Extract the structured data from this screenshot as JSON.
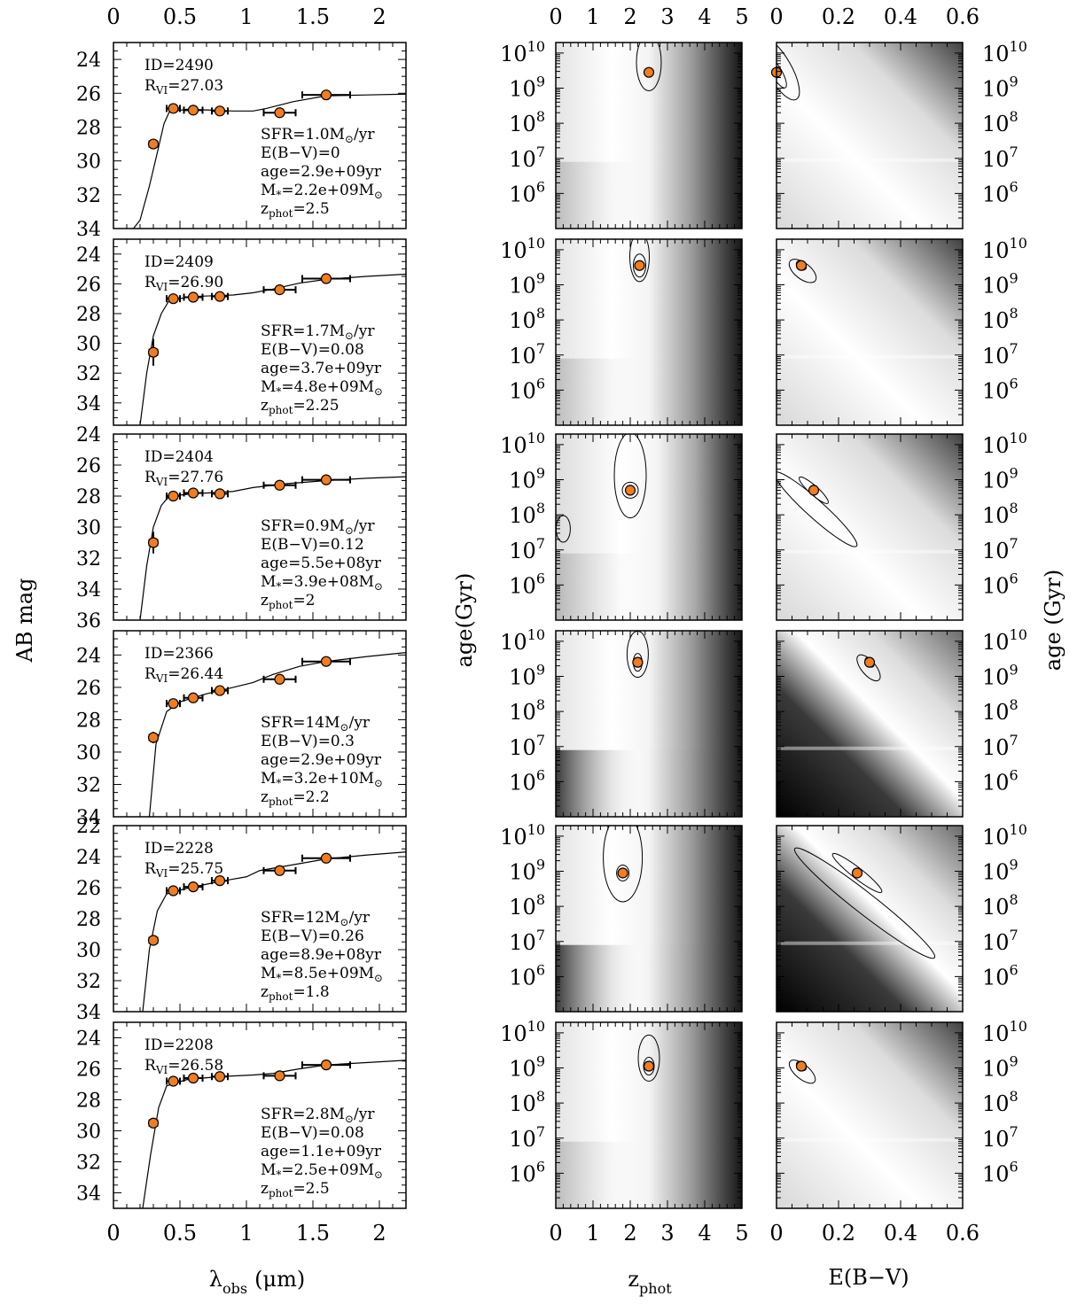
{
  "figure": {
    "sed_ylabel": "AB mag",
    "sed_xlabel": "λ",
    "sed_xlabel_sub": "obs",
    "sed_xlabel_unit": "(μm)",
    "age_ylabel_left": "age(Gyr)",
    "age_ylabel_right": "age (Gyr)",
    "z_xlabel": "z",
    "z_xlabel_sub": "phot",
    "ebv_xlabel": "E(B−V)",
    "colors": {
      "point_fill": "#ef7d22",
      "point_edge": "#000000",
      "curve": "#000000"
    }
  },
  "chart_data": [
    {
      "type": "scatter",
      "panel": "sed",
      "xlim": [
        0,
        2.2
      ],
      "xticks": [
        0,
        0.5,
        1,
        1.5,
        2
      ],
      "xticklabels": [
        "0",
        "0.5",
        "1",
        "1.5",
        "2"
      ],
      "rows": [
        {
          "ylim": [
            34,
            23
          ],
          "yticks": [
            24,
            26,
            28,
            30,
            32,
            34
          ],
          "ID": "2490",
          "RVI": "27.03",
          "SFR": "1.0",
          "EBV": "0",
          "age": "2.9e+09",
          "mass": "2.2e+09",
          "zphot": "2.5",
          "points": [
            [
              0.3,
              29.0
            ],
            [
              0.45,
              26.9
            ],
            [
              0.6,
              27.0
            ],
            [
              0.8,
              27.05
            ],
            [
              1.25,
              27.15
            ],
            [
              1.6,
              26.1
            ]
          ],
          "xerr": [
            0.03,
            0.05,
            0.07,
            0.06,
            0.12,
            0.18
          ],
          "yerr": [
            0.25,
            0.1,
            0.1,
            0.1,
            0.2,
            0.1
          ],
          "curve": [
            [
              0.1,
              34.5
            ],
            [
              0.2,
              33.5
            ],
            [
              0.27,
              31.5
            ],
            [
              0.33,
              29.5
            ],
            [
              0.38,
              27.8
            ],
            [
              0.42,
              27.1
            ],
            [
              0.55,
              26.95
            ],
            [
              0.75,
              27.0
            ],
            [
              0.9,
              27.05
            ],
            [
              1.05,
              27.05
            ],
            [
              1.15,
              26.9
            ],
            [
              1.35,
              26.5
            ],
            [
              1.6,
              26.15
            ],
            [
              1.9,
              26.1
            ],
            [
              2.2,
              26.05
            ]
          ]
        },
        {
          "ylim": [
            35.5,
            23
          ],
          "yticks": [
            24,
            26,
            28,
            30,
            32,
            34
          ],
          "ID": "2409",
          "RVI": "26.90",
          "SFR": "1.7",
          "EBV": "0.08",
          "age": "3.7e+09",
          "mass": "4.8e+09",
          "zphot": "2.25",
          "points": [
            [
              0.3,
              30.6
            ],
            [
              0.45,
              27.0
            ],
            [
              0.6,
              26.9
            ],
            [
              0.8,
              26.85
            ],
            [
              1.25,
              26.4
            ],
            [
              1.6,
              25.65
            ]
          ],
          "xerr": [
            0.03,
            0.05,
            0.07,
            0.06,
            0.12,
            0.18
          ],
          "yerr": [
            0.9,
            0.1,
            0.1,
            0.1,
            0.2,
            0.1
          ],
          "curve": [
            [
              0.2,
              35.5
            ],
            [
              0.25,
              32.0
            ],
            [
              0.3,
              29.5
            ],
            [
              0.36,
              28.0
            ],
            [
              0.42,
              27.1
            ],
            [
              0.6,
              26.85
            ],
            [
              0.9,
              26.75
            ],
            [
              1.05,
              26.6
            ],
            [
              1.2,
              26.35
            ],
            [
              1.4,
              25.95
            ],
            [
              1.6,
              25.7
            ],
            [
              1.9,
              25.5
            ],
            [
              2.2,
              25.35
            ]
          ]
        },
        {
          "ylim": [
            36,
            24
          ],
          "yticks": [
            24,
            26,
            28,
            30,
            32,
            34,
            36
          ],
          "ID": "2404",
          "RVI": "27.76",
          "SFR": "0.9",
          "EBV": "0.12",
          "age": "5.5e+08",
          "mass": "3.9e+08",
          "zphot": "2",
          "points": [
            [
              0.3,
              31.0
            ],
            [
              0.45,
              28.0
            ],
            [
              0.6,
              27.8
            ],
            [
              0.8,
              27.85
            ],
            [
              1.25,
              27.3
            ],
            [
              1.6,
              26.95
            ]
          ],
          "xerr": [
            0.03,
            0.05,
            0.07,
            0.06,
            0.12,
            0.18
          ],
          "yerr": [
            0.7,
            0.1,
            0.1,
            0.1,
            0.2,
            0.1
          ],
          "curve": [
            [
              0.2,
              36.0
            ],
            [
              0.25,
              32.5
            ],
            [
              0.3,
              30.0
            ],
            [
              0.36,
              28.6
            ],
            [
              0.42,
              28.0
            ],
            [
              0.6,
              27.85
            ],
            [
              0.9,
              27.7
            ],
            [
              1.05,
              27.45
            ],
            [
              1.3,
              27.2
            ],
            [
              1.6,
              27.0
            ],
            [
              1.9,
              26.85
            ],
            [
              2.2,
              26.75
            ]
          ]
        },
        {
          "ylim": [
            34,
            22.5
          ],
          "yticks": [
            24,
            26,
            28,
            30,
            32,
            34
          ],
          "ID": "2366",
          "RVI": "26.44",
          "SFR": "14",
          "EBV": "0.3",
          "age": "2.9e+09",
          "mass": "3.2e+10",
          "zphot": "2.2",
          "points": [
            [
              0.3,
              29.1
            ],
            [
              0.45,
              27.0
            ],
            [
              0.6,
              26.65
            ],
            [
              0.8,
              26.2
            ],
            [
              1.25,
              25.5
            ],
            [
              1.6,
              24.4
            ]
          ],
          "xerr": [
            0.03,
            0.05,
            0.07,
            0.06,
            0.12,
            0.18
          ],
          "yerr": [
            0.35,
            0.1,
            0.1,
            0.1,
            0.2,
            0.1
          ],
          "curve": [
            [
              0.27,
              34.0
            ],
            [
              0.32,
              29.5
            ],
            [
              0.4,
              27.5
            ],
            [
              0.5,
              26.9
            ],
            [
              0.7,
              26.4
            ],
            [
              0.9,
              26.0
            ],
            [
              1.05,
              25.7
            ],
            [
              1.2,
              25.2
            ],
            [
              1.4,
              24.7
            ],
            [
              1.6,
              24.4
            ],
            [
              1.9,
              24.1
            ],
            [
              2.2,
              23.85
            ]
          ]
        },
        {
          "ylim": [
            34,
            22
          ],
          "yticks": [
            22,
            24,
            26,
            28,
            30,
            32,
            34
          ],
          "ID": "2228",
          "RVI": "25.75",
          "SFR": "12",
          "EBV": "0.26",
          "age": "8.9e+08",
          "mass": "8.5e+09",
          "zphot": "1.8",
          "points": [
            [
              0.3,
              29.4
            ],
            [
              0.45,
              26.2
            ],
            [
              0.6,
              25.95
            ],
            [
              0.8,
              25.55
            ],
            [
              1.25,
              24.9
            ],
            [
              1.6,
              24.1
            ]
          ],
          "xerr": [
            0.03,
            0.05,
            0.07,
            0.06,
            0.12,
            0.18
          ],
          "yerr": [
            0.3,
            0.1,
            0.1,
            0.1,
            0.2,
            0.1
          ],
          "curve": [
            [
              0.22,
              34.0
            ],
            [
              0.27,
              30.0
            ],
            [
              0.33,
              27.5
            ],
            [
              0.4,
              26.4
            ],
            [
              0.55,
              26.05
            ],
            [
              0.8,
              25.6
            ],
            [
              1.0,
              25.3
            ],
            [
              1.1,
              24.9
            ],
            [
              1.3,
              24.6
            ],
            [
              1.6,
              24.15
            ],
            [
              1.9,
              23.9
            ],
            [
              2.2,
              23.7
            ]
          ]
        },
        {
          "ylim": [
            35,
            23
          ],
          "yticks": [
            24,
            26,
            28,
            30,
            32,
            34
          ],
          "ID": "2208",
          "RVI": "26.58",
          "SFR": "2.8",
          "EBV": "0.08",
          "age": "1.1e+09",
          "mass": "2.5e+09",
          "zphot": "2.5",
          "points": [
            [
              0.3,
              29.5
            ],
            [
              0.45,
              26.8
            ],
            [
              0.6,
              26.6
            ],
            [
              0.8,
              26.5
            ],
            [
              1.25,
              26.45
            ],
            [
              1.6,
              25.75
            ]
          ],
          "xerr": [
            0.03,
            0.05,
            0.07,
            0.06,
            0.12,
            0.18
          ],
          "yerr": [
            0.2,
            0.1,
            0.1,
            0.1,
            0.2,
            0.1
          ],
          "curve": [
            [
              0.22,
              35.0
            ],
            [
              0.28,
              31.5
            ],
            [
              0.34,
              28.5
            ],
            [
              0.4,
              27.1
            ],
            [
              0.55,
              26.7
            ],
            [
              0.8,
              26.5
            ],
            [
              1.05,
              26.4
            ],
            [
              1.2,
              26.3
            ],
            [
              1.4,
              26.0
            ],
            [
              1.6,
              25.75
            ],
            [
              1.9,
              25.6
            ],
            [
              2.2,
              25.45
            ]
          ]
        }
      ]
    },
    {
      "type": "heatmap",
      "panel": "age-vs-zphot",
      "xlim": [
        0,
        5
      ],
      "xticks": [
        0,
        1,
        2,
        3,
        4,
        5
      ],
      "xticklabels": [
        "0",
        "1",
        "2",
        "3",
        "4",
        "5"
      ],
      "ylim_log": [
        5.0,
        10.3
      ],
      "ytick_exponents": [
        6,
        7,
        8,
        9,
        10
      ],
      "best_fit": [
        [
          2.5,
          9.45
        ],
        [
          2.25,
          9.55
        ],
        [
          2.0,
          8.7
        ],
        [
          2.2,
          9.4
        ],
        [
          1.8,
          8.95
        ],
        [
          2.5,
          9.05
        ]
      ]
    },
    {
      "type": "heatmap",
      "panel": "age-vs-ebv",
      "xlim": [
        0,
        0.6
      ],
      "xticks": [
        0,
        0.2,
        0.4,
        0.6
      ],
      "xticklabels": [
        "0",
        "0.2",
        "0.4",
        "0.6"
      ],
      "ylim_log": [
        5.0,
        10.3
      ],
      "ytick_exponents": [
        6,
        7,
        8,
        9,
        10
      ],
      "best_fit": [
        [
          0.0,
          9.45
        ],
        [
          0.08,
          9.55
        ],
        [
          0.12,
          8.7
        ],
        [
          0.3,
          9.4
        ],
        [
          0.26,
          8.95
        ],
        [
          0.08,
          9.05
        ]
      ]
    }
  ]
}
